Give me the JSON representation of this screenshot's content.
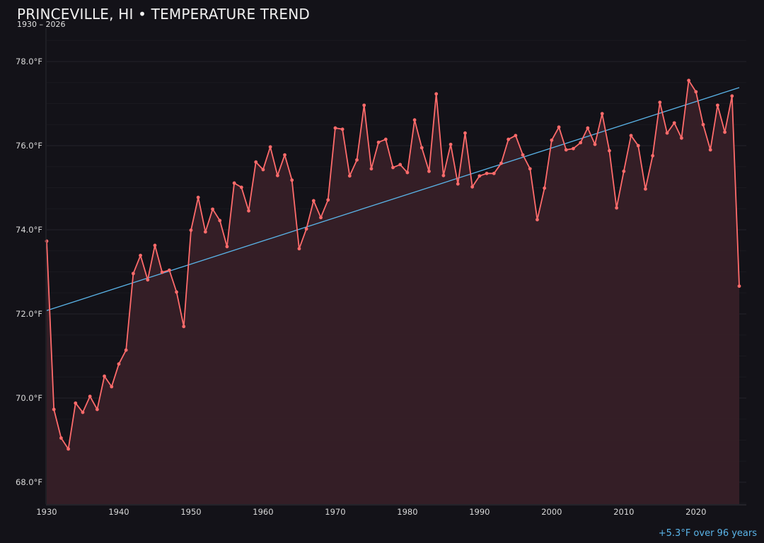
{
  "header": {
    "title": "PRINCEVILLE, HI • TEMPERATURE TREND",
    "subtitle": "1930 – 2026"
  },
  "footer": {
    "trend_note": "+5.3°F over 96 years"
  },
  "colors": {
    "background": "#131218",
    "line": "#ff6b6b",
    "fill": "#362027",
    "trend": "#5ab4e8",
    "grid": "#23222a"
  },
  "chart_data": {
    "type": "line",
    "title": "PRINCEVILLE, HI • TEMPERATURE TREND",
    "subtitle": "1930 – 2026",
    "xlabel": "",
    "ylabel": "",
    "xlim": [
      1930,
      2026
    ],
    "ylim": [
      67.5,
      78.5
    ],
    "grid": true,
    "x_ticks": [
      1930,
      1940,
      1950,
      1960,
      1970,
      1980,
      1990,
      2000,
      2010,
      2020
    ],
    "y_ticks": [
      68.0,
      70.0,
      72.0,
      74.0,
      76.0,
      78.0
    ],
    "y_tick_labels": [
      "68.0°F",
      "70.0°F",
      "72.0°F",
      "74.0°F",
      "76.0°F",
      "78.0°F"
    ],
    "series": [
      {
        "name": "Annual average temperature (°F)",
        "x": [
          1930,
          1931,
          1932,
          1933,
          1934,
          1935,
          1936,
          1937,
          1938,
          1939,
          1940,
          1941,
          1942,
          1943,
          1944,
          1945,
          1946,
          1947,
          1948,
          1949,
          1950,
          1951,
          1952,
          1953,
          1954,
          1955,
          1956,
          1957,
          1958,
          1959,
          1960,
          1961,
          1962,
          1963,
          1964,
          1965,
          1966,
          1967,
          1968,
          1969,
          1970,
          1971,
          1972,
          1973,
          1974,
          1975,
          1976,
          1977,
          1978,
          1979,
          1980,
          1981,
          1982,
          1983,
          1984,
          1985,
          1986,
          1987,
          1988,
          1989,
          1990,
          1991,
          1992,
          1993,
          1994,
          1995,
          1996,
          1997,
          1998,
          1999,
          2000,
          2001,
          2002,
          2003,
          2004,
          2005,
          2006,
          2007,
          2008,
          2009,
          2010,
          2011,
          2012,
          2013,
          2014,
          2015,
          2016,
          2017,
          2018,
          2019,
          2020,
          2021,
          2022,
          2023,
          2024,
          2025,
          2026
        ],
        "values": [
          73.73,
          69.73,
          69.05,
          68.79,
          69.88,
          69.66,
          70.04,
          69.73,
          70.52,
          70.27,
          70.81,
          71.14,
          72.96,
          73.39,
          72.81,
          73.63,
          72.99,
          73.04,
          72.52,
          71.7,
          73.99,
          74.77,
          73.95,
          74.49,
          74.22,
          73.6,
          75.11,
          75.01,
          74.45,
          75.61,
          75.43,
          75.97,
          75.29,
          75.78,
          75.18,
          73.55,
          74.02,
          74.69,
          74.29,
          74.71,
          76.42,
          76.39,
          75.28,
          75.66,
          76.96,
          75.45,
          76.08,
          76.15,
          75.48,
          75.55,
          75.36,
          76.61,
          75.95,
          75.39,
          77.23,
          75.29,
          76.03,
          75.09,
          76.3,
          75.02,
          75.28,
          75.34,
          75.34,
          75.58,
          76.15,
          76.24,
          75.78,
          75.45,
          74.24,
          74.99,
          76.13,
          76.44,
          75.9,
          75.93,
          76.07,
          76.42,
          76.03,
          76.76,
          75.88,
          74.52,
          75.39,
          76.24,
          76.0,
          74.97,
          75.76,
          77.03,
          76.3,
          76.54,
          76.18,
          77.55,
          77.28,
          76.5,
          75.9,
          76.96,
          76.32,
          77.18,
          72.66
        ]
      },
      {
        "name": "Linear trend",
        "x": [
          1930,
          2026
        ],
        "values": [
          72.08,
          77.38
        ]
      }
    ],
    "annotations": [
      "+5.3°F over 96 years"
    ]
  }
}
